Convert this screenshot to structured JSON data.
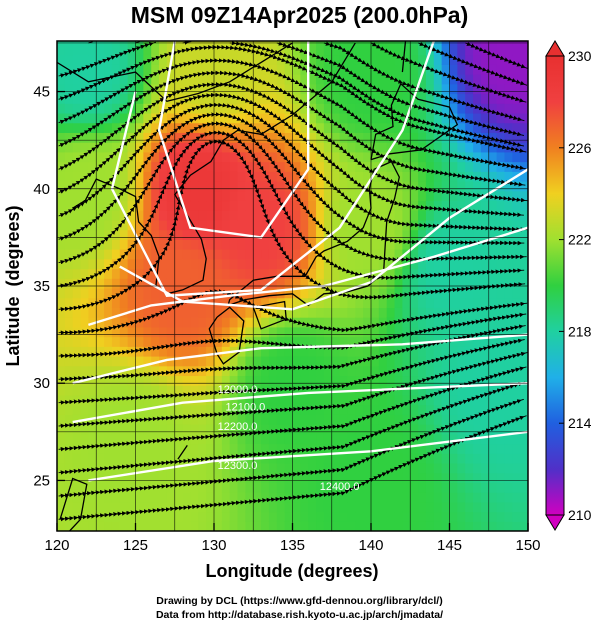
{
  "title": "MSM 09Z14Apr2025 (200.0hPa)",
  "credits": {
    "line1": "Drawing by DCL (https://www.gfd-dennou.org/library/dcl/)",
    "line2": "Data from http://database.rish.kyoto-u.ac.jp/arch/jmadata/"
  },
  "chart_data": {
    "type": "heatmap",
    "title": "MSM 09Z14Apr2025 (200.0hPa)",
    "xlabel": "Longitude (degrees)",
    "ylabel": "Latitude  (degrees)",
    "xlim": [
      120,
      150
    ],
    "ylim": [
      22.4,
      47.6
    ],
    "xticks": [
      120,
      125,
      130,
      135,
      140,
      145,
      150
    ],
    "yticks": [
      25,
      30,
      35,
      40,
      45
    ],
    "grid": true,
    "colorbar": {
      "min": 210,
      "max": 230,
      "ticks": [
        210,
        214,
        218,
        222,
        226,
        230
      ],
      "colors": [
        "#d000c0",
        "#5030c8",
        "#2060e0",
        "#20b0e8",
        "#20d0a0",
        "#30d040",
        "#a0e030",
        "#f0d020",
        "#f08020",
        "#f04040",
        "#e83030"
      ]
    },
    "field_variable": "temperature",
    "field_samples": [
      {
        "lon": 122,
        "lat": 46,
        "value": 218
      },
      {
        "lon": 130,
        "lat": 46,
        "value": 223
      },
      {
        "lon": 140,
        "lat": 46,
        "value": 220
      },
      {
        "lon": 149,
        "lat": 47,
        "value": 211
      },
      {
        "lon": 129,
        "lat": 40,
        "value": 229
      },
      {
        "lon": 133,
        "lat": 38,
        "value": 228
      },
      {
        "lon": 128,
        "lat": 35,
        "value": 227
      },
      {
        "lon": 122,
        "lat": 40,
        "value": 222
      },
      {
        "lon": 140,
        "lat": 38,
        "value": 222
      },
      {
        "lon": 145,
        "lat": 36,
        "value": 218
      },
      {
        "lon": 148,
        "lat": 30,
        "value": 218
      },
      {
        "lon": 135,
        "lat": 30,
        "value": 220
      },
      {
        "lon": 125,
        "lat": 27,
        "value": 222
      },
      {
        "lon": 140,
        "lat": 25,
        "value": 220
      }
    ],
    "contour_labels": [
      {
        "text": "12000.0",
        "lon": 131.5,
        "lat": 29.5
      },
      {
        "text": "12100.0",
        "lon": 132,
        "lat": 28.6
      },
      {
        "text": "12200.0",
        "lon": 131.5,
        "lat": 27.6
      },
      {
        "text": "12300.0",
        "lon": 131.5,
        "lat": 25.6
      },
      {
        "text": "12400.0",
        "lon": 138,
        "lat": 24.5
      }
    ],
    "wind_field": "streamlines"
  }
}
